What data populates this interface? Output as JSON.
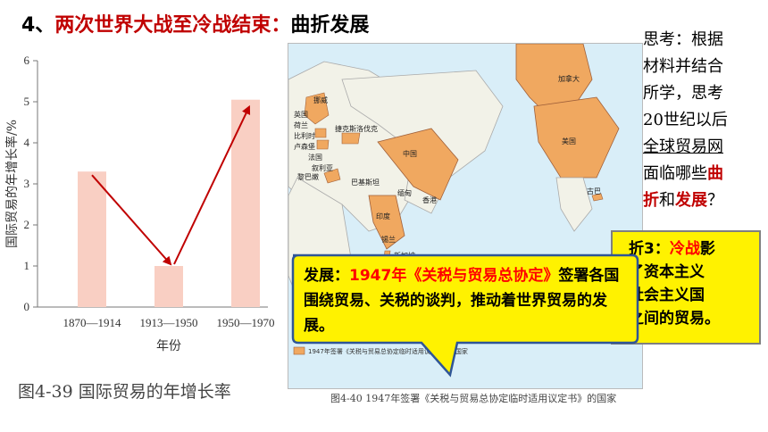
{
  "heading": {
    "number": "4、",
    "red_part": "两次世界大战至冷战结束：",
    "black_part": "曲折发展"
  },
  "chart_data": {
    "type": "bar",
    "categories": [
      "1870—1914",
      "1913—1950",
      "1950—1970"
    ],
    "values": [
      3.3,
      1.0,
      5.05
    ],
    "ylim": [
      0,
      6
    ],
    "yticks": [
      "0",
      "1",
      "2",
      "3",
      "4",
      "5",
      "6"
    ],
    "xlabel": "年份",
    "ylabel": "国际贸易的年增长率/%",
    "bar_color": "#f9cfc3",
    "arrow_color": "#c00000",
    "grid": false
  },
  "figure_caption": "图4-39  国际贸易的年增长率",
  "map": {
    "caption": "图4-40  1947年签署《关税与贸易总协定临时适用议定书》的国家",
    "labels": [
      "挪威",
      "英国",
      "荷兰",
      "比利时",
      "卢森堡",
      "法国",
      "捷克斯洛伐克",
      "叙利亚",
      "黎巴嫩",
      "巴基斯坦",
      "中国",
      "印度",
      "锡兰",
      "缅甸",
      "新加坡",
      "香港",
      "美国",
      "加拿大",
      "古巴"
    ],
    "legend_text": "1947年签署《关税与贸易总协定临时适用议定书》的国家",
    "land_color": "#f2f2e8",
    "member_color": "#f0a860",
    "sea_color": "#d9eef8"
  },
  "think_box": {
    "line1": "思考：根据",
    "line2": "材料并结合",
    "line3": "所学，思考",
    "line4": "20世纪以后",
    "line5": "全球贸易网",
    "line6_a": "面临哪些",
    "line6_b": "曲",
    "line7_a": "折",
    "line7_b": "和",
    "line7_c": "发展",
    "line7_d": "？"
  },
  "info3": {
    "prefix": "折3：",
    "red": "冷战",
    "line1_end": "影",
    "line2": "了资本主义",
    "line3": "社会主义国",
    "line4": "之间的贸易。"
  },
  "bubble": {
    "label": "发展：",
    "red": "1947年《关税与贸易总协定》",
    "rest": "签署各国围绕贸易、关税的谈判，推动着世界贸易的发展。",
    "fill": "#fff200",
    "stroke": "#2f5597"
  }
}
